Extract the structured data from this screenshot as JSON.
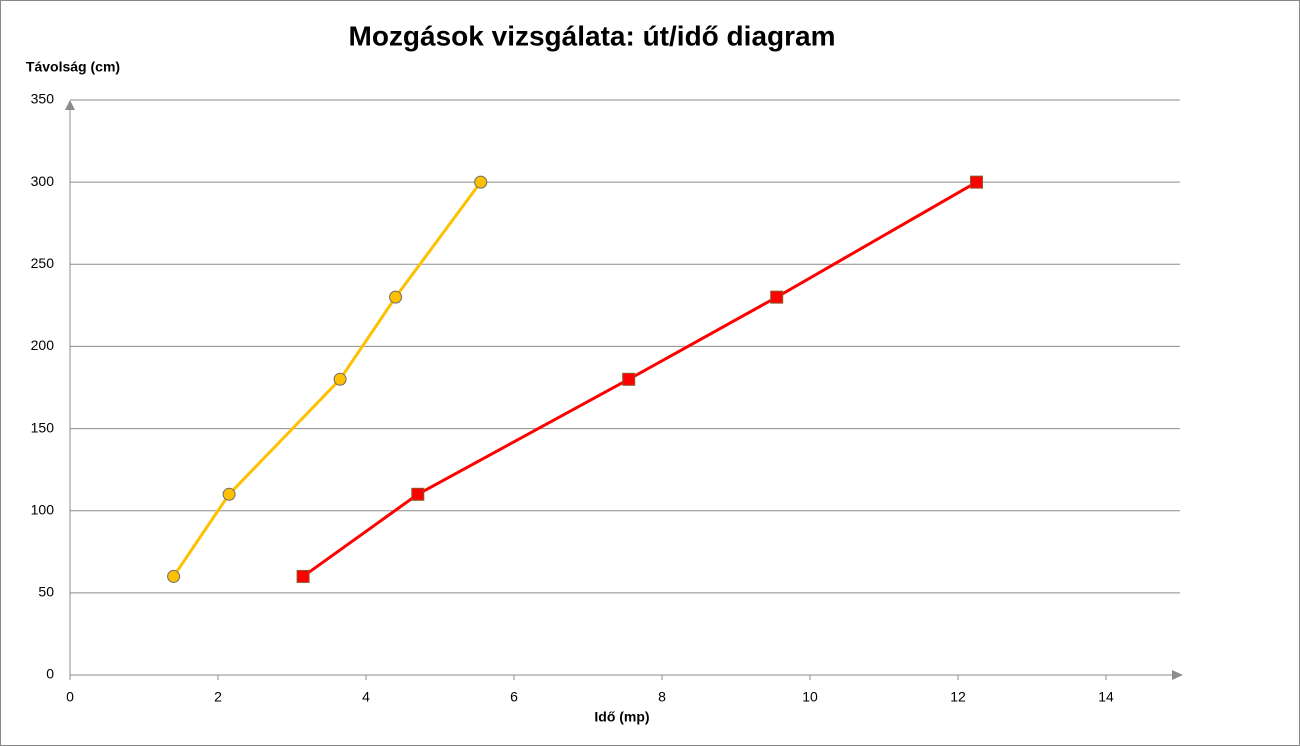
{
  "chart_data": {
    "type": "scatter-line",
    "title": "Mozgások vizsgálata: út/idő diagram",
    "x_label": "Idő (mp)",
    "y_label": "Távolság (cm)",
    "xlim": [
      0,
      15
    ],
    "xticks": [
      0,
      2,
      4,
      6,
      8,
      10,
      12,
      14
    ],
    "ylim": [
      0,
      350
    ],
    "yticks": [
      0,
      50,
      100,
      150,
      200,
      250,
      300,
      350
    ],
    "grid": true,
    "series": [
      {
        "color": "#FFC000",
        "marker": "circle",
        "x": [
          1.4,
          2.15,
          3.65,
          4.4,
          5.55
        ],
        "values": [
          60,
          110,
          180,
          230,
          300
        ]
      },
      {
        "color": "#FF0000",
        "marker": "square",
        "x": [
          3.15,
          4.7,
          7.55,
          9.55,
          12.25
        ],
        "values": [
          60,
          110,
          180,
          230,
          300
        ]
      }
    ]
  }
}
